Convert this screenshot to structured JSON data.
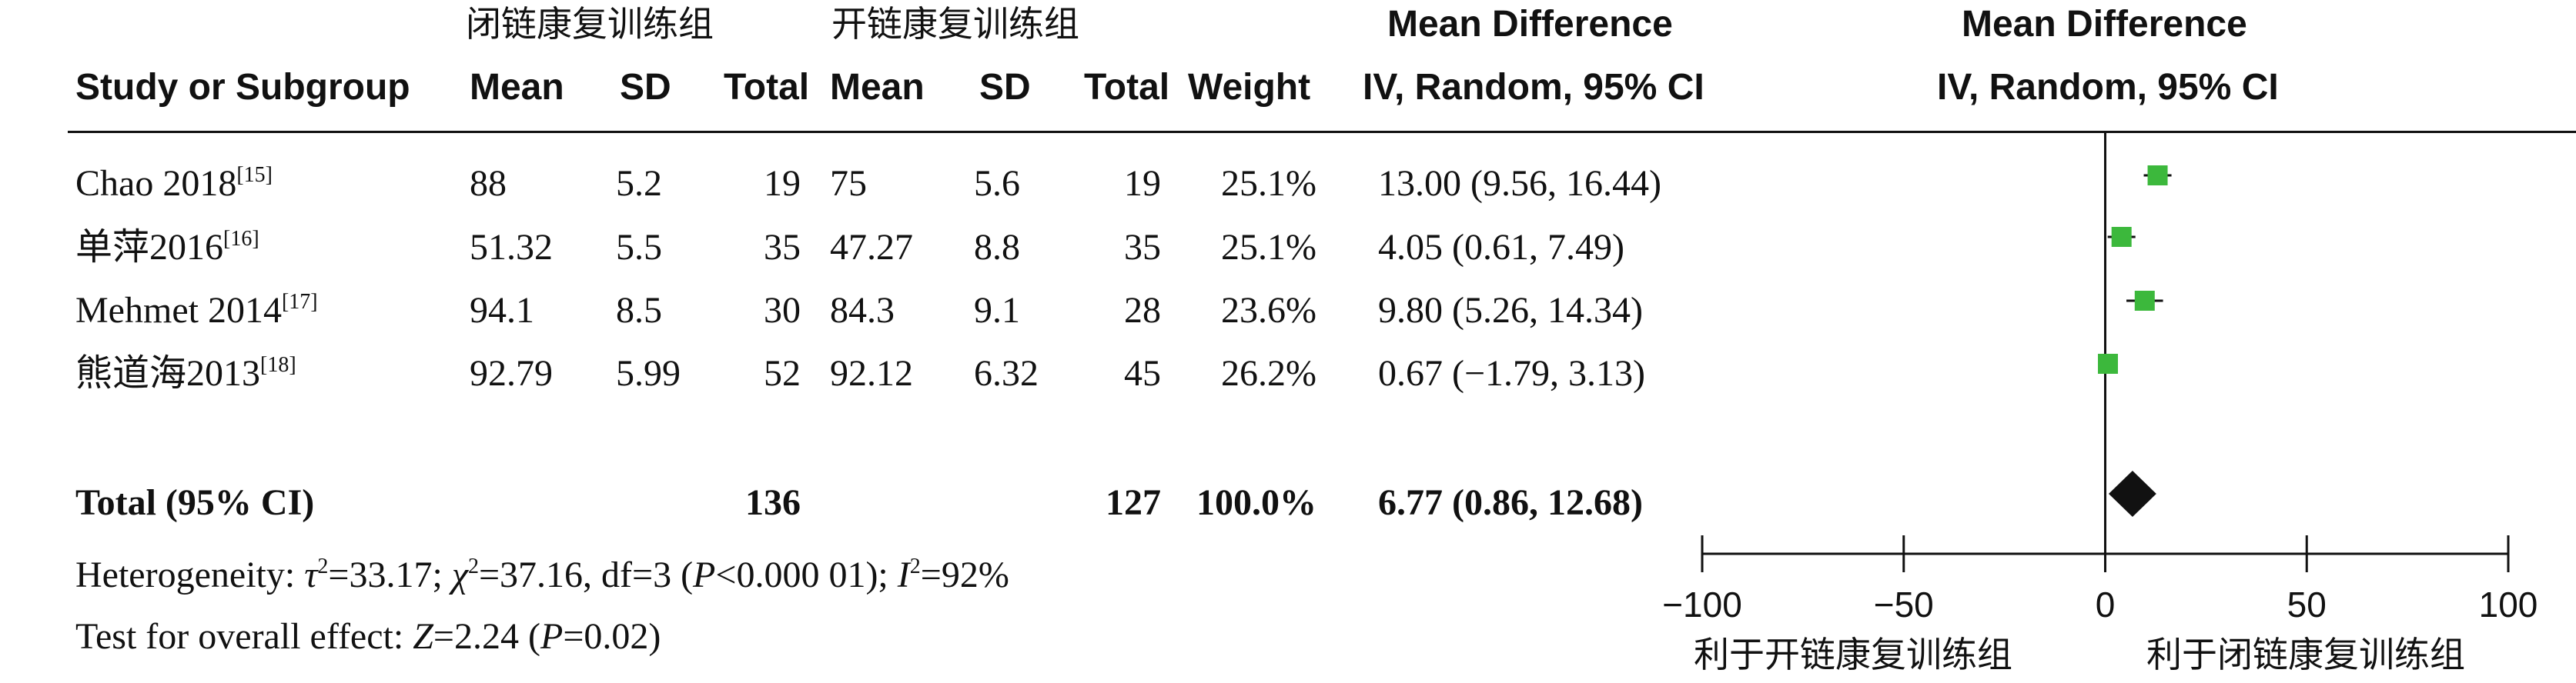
{
  "header": {
    "group_closed": "闭链康复训练组",
    "group_open": "开链康复训练组",
    "col_study": "Study or Subgroup",
    "col_mean1": "Mean",
    "col_sd1": "SD",
    "col_total1": "Total",
    "col_mean2": "Mean",
    "col_sd2": "SD",
    "col_total2": "Total",
    "col_weight": "Weight",
    "md_title": "Mean Difference",
    "md_method": "IV, Random, 95% CI",
    "plot_title": "Mean Difference",
    "plot_method": "IV, Random, 95% CI"
  },
  "studies": [
    {
      "name": "Chao 2018",
      "ref": "[15]",
      "mean1": "88",
      "sd1": "5.2",
      "total1": "19",
      "mean2": "75",
      "sd2": "5.6",
      "total2": "19",
      "weight": "25.1%",
      "ci_text": "13.00 (9.56, 16.44)"
    },
    {
      "name": "单萍2016",
      "ref": "[16]",
      "mean1": "51.32",
      "sd1": "5.5",
      "total1": "35",
      "mean2": "47.27",
      "sd2": "8.8",
      "total2": "35",
      "weight": "25.1%",
      "ci_text": "4.05 (0.61, 7.49)"
    },
    {
      "name": "Mehmet 2014",
      "ref": "[17]",
      "mean1": "94.1",
      "sd1": "8.5",
      "total1": "30",
      "mean2": "84.3",
      "sd2": "9.1",
      "total2": "28",
      "weight": "23.6%",
      "ci_text": "9.80 (5.26, 14.34)"
    },
    {
      "name": "熊道海2013",
      "ref": "[18]",
      "mean1": "92.79",
      "sd1": "5.99",
      "total1": "52",
      "mean2": "92.12",
      "sd2": "6.32",
      "total2": "45",
      "weight": "26.2%",
      "ci_text": "0.67 (−1.79, 3.13)"
    }
  ],
  "total": {
    "label": "Total (95% CI)",
    "total1": "136",
    "total2": "127",
    "weight": "100.0%",
    "ci_text": "6.77 (0.86, 12.68)"
  },
  "heterogeneity": {
    "prefix": "Heterogeneity: ",
    "tau_sym": "τ",
    "tau_exp": "2",
    "tau_val": "=33.17; ",
    "chi_sym": "χ",
    "chi_exp": "2",
    "chi_val": "=37.16, df=3 (",
    "p_sym": "P",
    "p_val": "<0.000 01); ",
    "i_sym": "I",
    "i_exp": "2",
    "i_val": "=92%"
  },
  "overall_effect": {
    "prefix": "Test for overall effect: ",
    "z_sym": "Z",
    "z_val": "=2.24 (",
    "p_sym": "P",
    "p_val": "=0.02)"
  },
  "chart_data": {
    "type": "scatter",
    "subtype": "forest-plot",
    "title": "Mean Difference",
    "subtitle": "IV, Random, 95% CI",
    "xlim": [
      -100,
      100
    ],
    "ticks": [
      -100,
      -50,
      0,
      50,
      100
    ],
    "tick_labels": [
      "−100",
      "−50",
      "0",
      "50",
      "100"
    ],
    "left_label": "利于开链康复训练组",
    "right_label": "利于闭链康复训练组",
    "studies": [
      {
        "name": "Chao 2018",
        "estimate": 13.0,
        "lower": 9.56,
        "upper": 16.44,
        "weight": 25.1
      },
      {
        "name": "单萍2016",
        "estimate": 4.05,
        "lower": 0.61,
        "upper": 7.49,
        "weight": 25.1
      },
      {
        "name": "Mehmet 2014",
        "estimate": 9.8,
        "lower": 5.26,
        "upper": 14.34,
        "weight": 23.6
      },
      {
        "name": "熊道海2013",
        "estimate": 0.67,
        "lower": -1.79,
        "upper": 3.13,
        "weight": 26.2
      }
    ],
    "pooled": {
      "estimate": 6.77,
      "lower": 0.86,
      "upper": 12.68
    },
    "marker_color": "#3cb83c",
    "diamond_color": "#111111"
  }
}
